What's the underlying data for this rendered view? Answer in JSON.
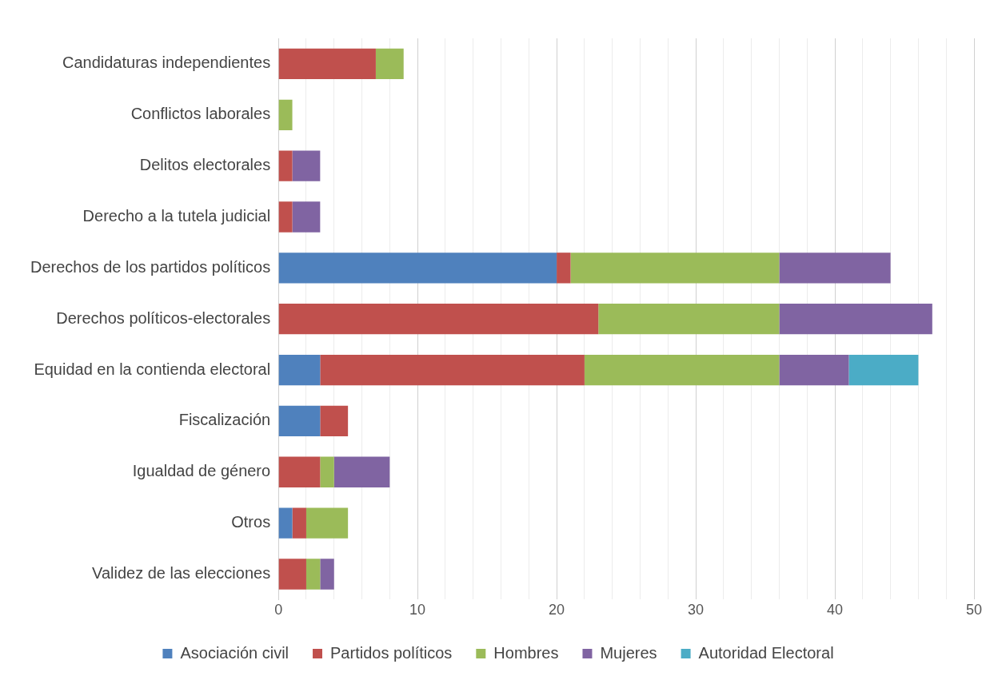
{
  "chart_data": {
    "type": "bar",
    "orientation": "horizontal",
    "stacked": true,
    "categories": [
      "Candidaturas independientes",
      "Conflictos laborales",
      "Delitos electorales",
      "Derecho a la tutela judicial",
      "Derechos de los partidos políticos",
      "Derechos políticos-electorales",
      "Equidad en la contienda electoral",
      "Fiscalización",
      "Igualdad de género",
      "Otros",
      "Validez de las elecciones"
    ],
    "series": [
      {
        "name": "Asociación civil",
        "color": "#4f81bd",
        "values": [
          0,
          0,
          0,
          0,
          20,
          0,
          3,
          3,
          0,
          1,
          0
        ]
      },
      {
        "name": "Partidos políticos",
        "color": "#c0504d",
        "values": [
          7,
          0,
          1,
          1,
          1,
          23,
          19,
          2,
          3,
          1,
          2
        ]
      },
      {
        "name": "Hombres",
        "color": "#9bbb59",
        "values": [
          2,
          1,
          0,
          0,
          15,
          13,
          14,
          0,
          1,
          3,
          1
        ]
      },
      {
        "name": "Mujeres",
        "color": "#8064a2",
        "values": [
          0,
          0,
          2,
          2,
          8,
          11,
          5,
          0,
          4,
          0,
          1
        ]
      },
      {
        "name": "Autoridad Electoral",
        "color": "#4bacc6",
        "values": [
          0,
          0,
          0,
          0,
          0,
          0,
          5,
          0,
          0,
          0,
          0
        ]
      }
    ],
    "xlim": [
      0,
      50
    ],
    "xticks": [
      0,
      {
        "value": 2,
        "label": null
      },
      {
        "value": 4,
        "label": null
      },
      {
        "value": 6,
        "label": null
      },
      {
        "value": 8,
        "label": null
      },
      10,
      {
        "value": 12,
        "label": null
      },
      {
        "value": 14,
        "label": null
      },
      {
        "value": 16,
        "label": null
      },
      {
        "value": 18,
        "label": null
      },
      20,
      {
        "value": 22,
        "label": null
      },
      {
        "value": 24,
        "label": null
      },
      {
        "value": 26,
        "label": null
      },
      {
        "value": 28,
        "label": null
      },
      30,
      {
        "value": 32,
        "label": null
      },
      {
        "value": 34,
        "label": null
      },
      {
        "value": 36,
        "label": null
      },
      {
        "value": 38,
        "label": null
      },
      40,
      {
        "value": 42,
        "label": null
      },
      {
        "value": 44,
        "label": null
      },
      {
        "value": 46,
        "label": null
      },
      {
        "value": 48,
        "label": null
      },
      50
    ],
    "grid": "x",
    "legend": "bottom"
  }
}
